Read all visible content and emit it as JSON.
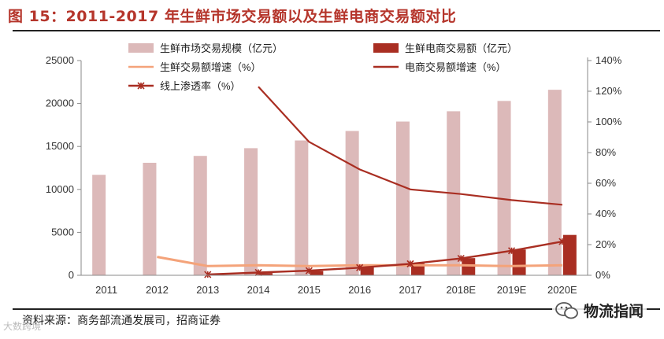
{
  "page_title": "图 15：2011-2017 年生鲜市场交易额以及生鲜电商交易额对比",
  "source_note": "资料来源：商务部流通发展司，招商证券",
  "watermark_left": "大数跨境",
  "watermark_right": "物流指闻",
  "chart_data": {
    "type": "bar",
    "title": "2011-2017 年生鲜市场交易额以及生鲜电商交易额对比",
    "categories": [
      "2011",
      "2012",
      "2013",
      "2014",
      "2015",
      "2016",
      "2017",
      "2018E",
      "2019E",
      "2020E"
    ],
    "y_left": {
      "min": 0,
      "max": 25000,
      "ticks": [
        "0",
        "5000",
        "10000",
        "15000",
        "20000",
        "25000"
      ]
    },
    "y_right": {
      "min": 0,
      "max": 140,
      "ticks": [
        "0%",
        "20%",
        "40%",
        "60%",
        "80%",
        "100%",
        "120%",
        "140%"
      ]
    },
    "grid": false,
    "legend_position": "top",
    "series": [
      {
        "name": "生鲜市场交易规模（亿元）",
        "type": "bar",
        "axis": "left",
        "color": "#dcb9b9",
        "values": [
          11700,
          13100,
          13900,
          14800,
          15700,
          16800,
          17900,
          19100,
          20300,
          21600
        ]
      },
      {
        "name": "生鲜电商交易额（亿元）",
        "type": "bar",
        "axis": "left",
        "color": "#a92e22",
        "values": [
          null,
          null,
          100,
          260,
          500,
          950,
          1400,
          2000,
          3000,
          4700
        ]
      },
      {
        "name": "生鲜交易额增速（%）",
        "type": "line",
        "axis": "right",
        "color": "#f4a37a",
        "values": [
          null,
          12,
          6,
          6.5,
          6,
          6.5,
          6.5,
          6.5,
          6,
          6.5
        ]
      },
      {
        "name": "电商交易额增速（%）",
        "type": "line",
        "axis": "right",
        "color": "#a92e22",
        "values": [
          null,
          null,
          null,
          123,
          87,
          69,
          56,
          53,
          49,
          46
        ]
      },
      {
        "name": "线上渗透率（%）",
        "type": "line-marker",
        "axis": "right",
        "color": "#a92e22",
        "values": [
          null,
          null,
          0.5,
          1.8,
          3,
          5,
          7.5,
          11,
          16,
          22
        ]
      }
    ]
  }
}
